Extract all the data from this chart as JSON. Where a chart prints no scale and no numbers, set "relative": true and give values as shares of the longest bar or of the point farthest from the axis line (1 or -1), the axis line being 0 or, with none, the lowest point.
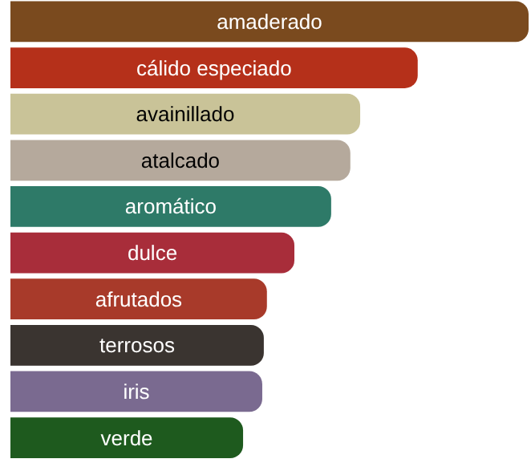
{
  "chart_data": {
    "type": "bar",
    "orientation": "horizontal",
    "relative": true,
    "grid": false,
    "categories": [
      "amaderado",
      "cálido especiado",
      "avainillado",
      "atalcado",
      "aromático",
      "dulce",
      "afrutados",
      "terrosos",
      "iris",
      "verde"
    ],
    "values": [
      1,
      0.786,
      0.675,
      0.656,
      0.619,
      0.548,
      0.495,
      0.489,
      0.486,
      0.449
    ],
    "colors": [
      "#7a4a1e",
      "#b5301a",
      "#c9c398",
      "#b5a99c",
      "#2e7a68",
      "#a82d3a",
      "#a83a2a",
      "#3a3430",
      "#7a6a90",
      "#1e5a1e"
    ]
  }
}
